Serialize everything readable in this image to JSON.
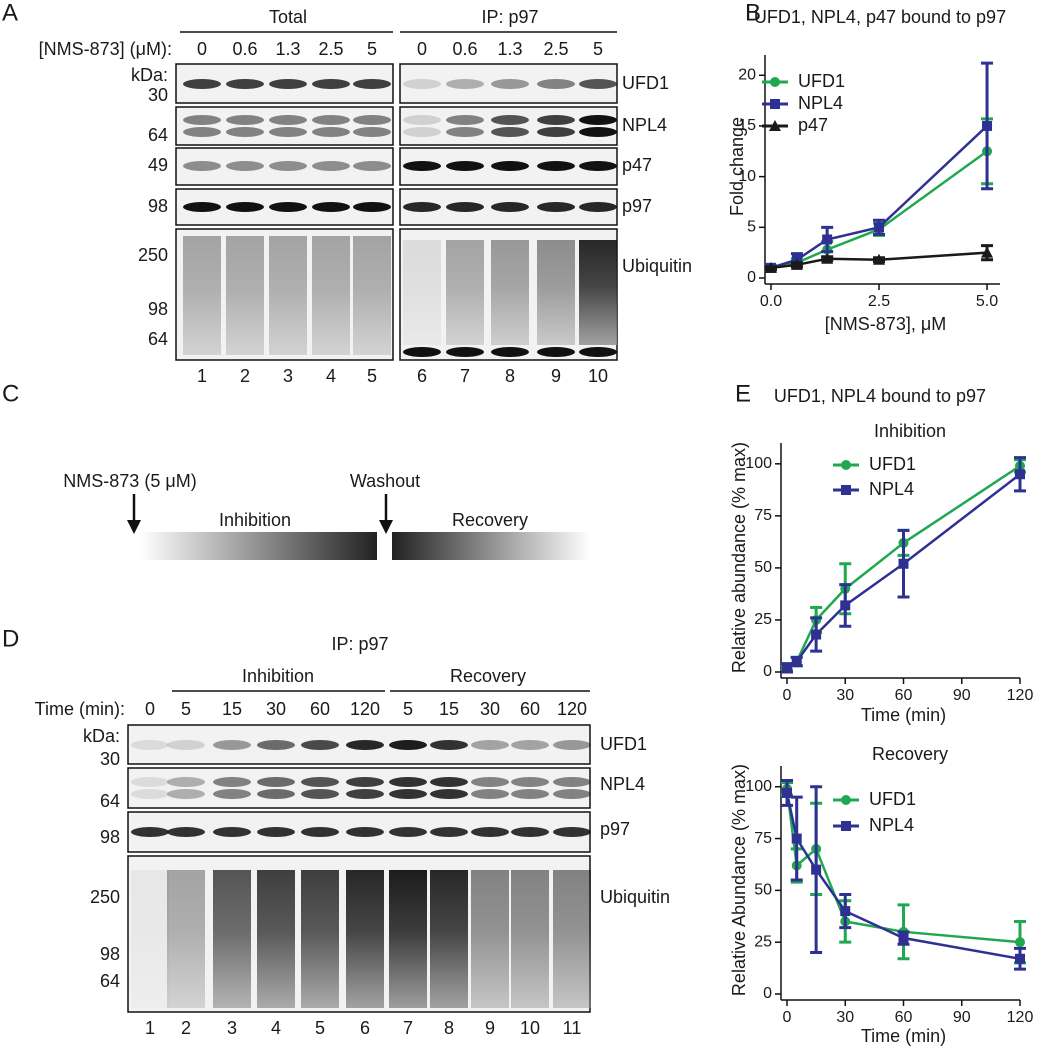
{
  "chart_data": [
    {
      "type": "line",
      "title": "UFD1, NPL4, p47 bound to p97",
      "xlabel": "[NMS-873], μM",
      "ylabel": "Fold change",
      "x": [
        0,
        0.6,
        1.3,
        2.5,
        5
      ],
      "series": [
        {
          "name": "UFD1",
          "color": "#1fa84f",
          "marker": "circle",
          "values": [
            1,
            1.5,
            2.8,
            4.8,
            12.5
          ],
          "errors": [
            0.2,
            0.4,
            0.8,
            0.6,
            3.2
          ]
        },
        {
          "name": "NPL4",
          "color": "#2e3192",
          "marker": "square",
          "values": [
            1,
            1.8,
            3.8,
            5,
            15
          ],
          "errors": [
            0.2,
            0.6,
            1.2,
            0.7,
            6.2
          ]
        },
        {
          "name": "p47",
          "color": "#1a1a1a",
          "marker": "triangle",
          "values": [
            1,
            1.3,
            1.9,
            1.8,
            2.5
          ],
          "errors": [
            0.1,
            0.2,
            0.2,
            0.2,
            0.7
          ]
        }
      ],
      "xlim": [
        0,
        5.3
      ],
      "ylim": [
        0,
        22
      ],
      "xticks": [
        {
          "value": 0,
          "label": "0.0"
        },
        {
          "value": 2.5,
          "label": "2.5"
        },
        {
          "value": 5,
          "label": "5.0"
        }
      ],
      "yticks": [
        0,
        5,
        10,
        15,
        20
      ]
    },
    {
      "type": "line",
      "title": "Inhibition",
      "xlabel": "Time (min)",
      "ylabel": "Relative abundance (% max)",
      "x": [
        0,
        5,
        15,
        30,
        60,
        120
      ],
      "series": [
        {
          "name": "UFD1",
          "color": "#1fa84f",
          "marker": "circle",
          "values": [
            2,
            5,
            25,
            40,
            62,
            99
          ],
          "errors": [
            1,
            2,
            6,
            12,
            6,
            3
          ]
        },
        {
          "name": "NPL4",
          "color": "#2e3192",
          "marker": "square",
          "values": [
            2,
            5,
            18,
            32,
            52,
            95
          ],
          "errors": [
            2,
            2,
            8,
            10,
            16,
            8
          ]
        }
      ],
      "xlim": [
        0,
        120
      ],
      "ylim": [
        0,
        110
      ],
      "xticks": [
        0,
        30,
        60,
        90,
        120
      ],
      "yticks": [
        0,
        25,
        50,
        75,
        100
      ]
    },
    {
      "type": "line",
      "title": "Recovery",
      "xlabel": "Time (min)",
      "ylabel": "Relative Abundance (% max)",
      "x": [
        0,
        5,
        15,
        30,
        60,
        120
      ],
      "series": [
        {
          "name": "UFD1",
          "color": "#1fa84f",
          "marker": "circle",
          "values": [
            99,
            62,
            70,
            35,
            30,
            25
          ],
          "errors": [
            3,
            8,
            22,
            10,
            13,
            10
          ]
        },
        {
          "name": "NPL4",
          "color": "#2e3192",
          "marker": "square",
          "values": [
            97,
            75,
            60,
            40,
            27,
            17
          ],
          "errors": [
            6,
            20,
            40,
            8,
            3,
            5
          ]
        }
      ],
      "xlim": [
        0,
        120
      ],
      "ylim": [
        0,
        110
      ],
      "xticks": [
        0,
        30,
        60,
        90,
        120
      ],
      "yticks": [
        0,
        25,
        50,
        75,
        100
      ]
    }
  ],
  "panels": {
    "A": {
      "letter": "A",
      "groups": [
        "Total",
        "IP: p97"
      ],
      "conc_label": "[NMS-873] (μM):",
      "concentrations": [
        "0",
        "0.6",
        "1.3",
        "2.5",
        "5",
        "0",
        "0.6",
        "1.3",
        "2.5",
        "5"
      ],
      "kda_label": "kDa:",
      "markers": [
        "30",
        "64",
        "49",
        "98",
        "250",
        "98",
        "64"
      ],
      "proteins": [
        "UFD1",
        "NPL4",
        "p47",
        "p97",
        "Ubiquitin"
      ],
      "lanes": [
        "1",
        "2",
        "3",
        "4",
        "5",
        "6",
        "7",
        "8",
        "9",
        "10"
      ]
    },
    "B": {
      "letter": "B"
    },
    "C": {
      "letter": "C",
      "treatment": "NMS-873 (5 μM)",
      "washout": "Washout",
      "phases": [
        "Inhibition",
        "Recovery"
      ]
    },
    "D": {
      "letter": "D",
      "title": "IP: p97",
      "groups": [
        "Inhibition",
        "Recovery"
      ],
      "time_label": "Time (min):",
      "times": [
        "0",
        "5",
        "15",
        "30",
        "60",
        "120",
        "5",
        "15",
        "30",
        "60",
        "120"
      ],
      "kda_label": "kDa:",
      "markers": [
        "30",
        "64",
        "98",
        "250",
        "98",
        "64"
      ],
      "proteins": [
        "UFD1",
        "NPL4",
        "p97",
        "Ubiquitin"
      ],
      "lanes": [
        "1",
        "2",
        "3",
        "4",
        "5",
        "6",
        "7",
        "8",
        "9",
        "10",
        "11"
      ]
    },
    "E": {
      "letter": "E",
      "title": "UFD1, NPL4 bound to p97"
    }
  }
}
